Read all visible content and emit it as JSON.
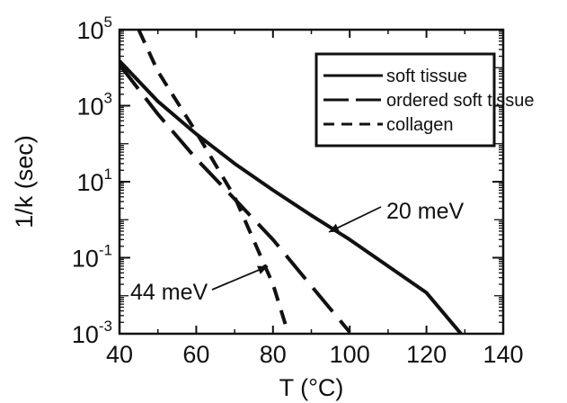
{
  "chart_data": {
    "type": "line",
    "xlabel": "T (°C)",
    "ylabel": "1/k  (sec)",
    "xlim": [
      40,
      140
    ],
    "ylim": [
      0.001,
      100000
    ],
    "yscale": "log",
    "x_ticks": [
      "40",
      "60",
      "80",
      "100",
      "120",
      "140"
    ],
    "y_ticks": [
      {
        "base": "10",
        "exp": "5",
        "value": 100000
      },
      {
        "base": "10",
        "exp": "3",
        "value": 1000
      },
      {
        "base": "10",
        "exp": "1",
        "value": 10
      },
      {
        "base": "10",
        "exp": "-1",
        "value": 0.1
      },
      {
        "base": "10",
        "exp": "-3",
        "value": 0.001
      }
    ],
    "grid": false,
    "legend_position": "top-right",
    "series": [
      {
        "name": "soft tissue",
        "style": "solid",
        "x": [
          40,
          50,
          60,
          70,
          80,
          90,
          100,
          110,
          120,
          129
        ],
        "y": [
          15000,
          1300,
          180,
          30,
          6,
          1.3,
          0.3,
          0.06,
          0.012,
          0.001
        ]
      },
      {
        "name": "ordered soft tissue",
        "style": "long-dash",
        "x": [
          40,
          50,
          60,
          70,
          80,
          90,
          100
        ],
        "y": [
          12000,
          600,
          40,
          3.5,
          0.3,
          0.018,
          0.0011
        ]
      },
      {
        "name": "collagen",
        "style": "short-dash",
        "x": [
          45,
          50,
          60,
          70,
          80,
          84
        ],
        "y": [
          100000,
          8000,
          200,
          4,
          0.02,
          0.001
        ]
      }
    ],
    "annotations": [
      {
        "text": "20 meV",
        "x": 100,
        "y": 4
      },
      {
        "text": "44 meV",
        "x": 52,
        "y": 0.009
      }
    ]
  }
}
